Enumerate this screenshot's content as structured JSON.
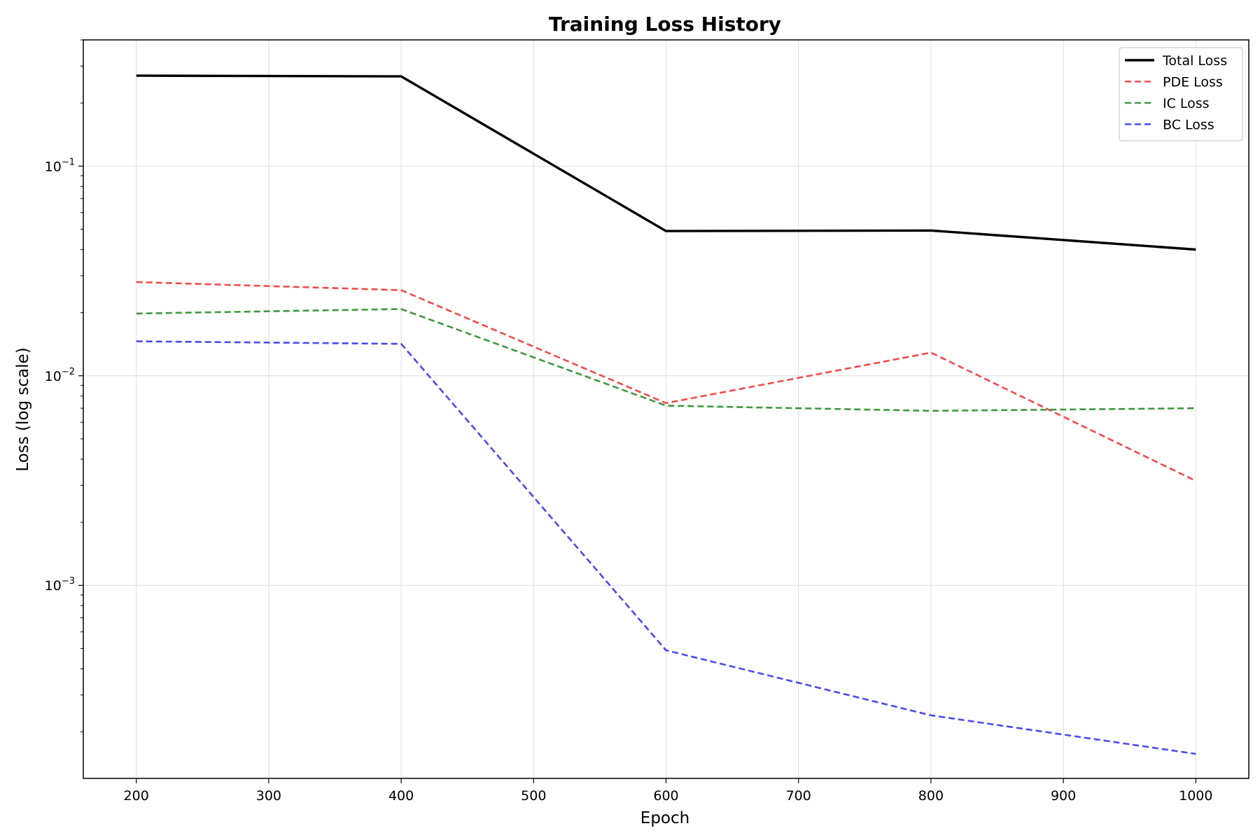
{
  "chart_data": {
    "type": "line",
    "title": "Training Loss History",
    "xlabel": "Epoch",
    "ylabel": "Loss (log scale)",
    "yscale": "log",
    "xlim": [
      160,
      1040
    ],
    "ylim": [
      0.00012,
      0.4
    ],
    "grid": true,
    "legend_position": "top-right",
    "x": [
      200,
      400,
      600,
      800,
      1000
    ],
    "xticks": [
      200,
      300,
      400,
      500,
      600,
      700,
      800,
      900,
      1000
    ],
    "yticks": [
      {
        "value": 0.1,
        "base": "10",
        "exp": "−1"
      },
      {
        "value": 0.01,
        "base": "10",
        "exp": "−2"
      },
      {
        "value": 0.001,
        "base": "10",
        "exp": "−3"
      }
    ],
    "series": [
      {
        "name": "Total Loss",
        "color": "#000000",
        "dashed": false,
        "values": [
          0.27,
          0.268,
          0.049,
          0.0493,
          0.04
        ]
      },
      {
        "name": "PDE Loss",
        "color": "#f24a4a",
        "dashed": true,
        "values": [
          0.028,
          0.0256,
          0.0074,
          0.0129,
          0.00315
        ]
      },
      {
        "name": "IC Loss",
        "color": "#3d993d",
        "dashed": true,
        "values": [
          0.0198,
          0.0208,
          0.0072,
          0.0068,
          0.007
        ]
      },
      {
        "name": "BC Loss",
        "color": "#4a4af2",
        "dashed": true,
        "values": [
          0.0146,
          0.0142,
          0.00049,
          0.00024,
          0.000157
        ]
      }
    ]
  }
}
